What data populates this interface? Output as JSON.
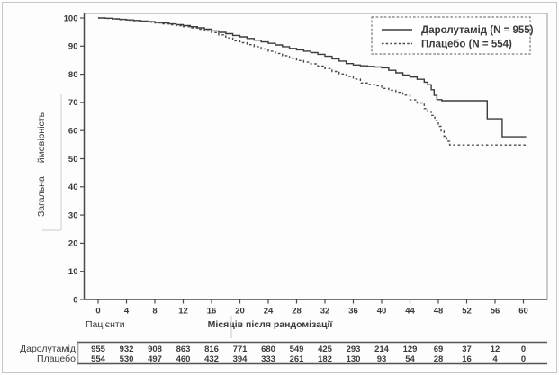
{
  "chart_data": {
    "type": "line",
    "subtype": "kaplan_meier_step",
    "title": "",
    "xlabel": "Місяців після рандомізації",
    "ylabel": "Загальна ймовірність",
    "xlim": [
      0,
      60
    ],
    "ylim": [
      0,
      100
    ],
    "x_ticks": [
      0,
      4,
      8,
      12,
      16,
      20,
      24,
      28,
      32,
      36,
      40,
      44,
      48,
      52,
      56,
      60
    ],
    "y_ticks": [
      0,
      10,
      20,
      30,
      40,
      50,
      60,
      70,
      80,
      90,
      100
    ],
    "grid": false,
    "legend_position": "top-right",
    "series": [
      {
        "name": "Даролутамід (N = 955)",
        "line_style": "solid",
        "points": [
          [
            0,
            100
          ],
          [
            1,
            99.9
          ],
          [
            2,
            99.7
          ],
          [
            3,
            99.5
          ],
          [
            4,
            99.3
          ],
          [
            5,
            99.1
          ],
          [
            6,
            98.9
          ],
          [
            7,
            98.7
          ],
          [
            8,
            98.4
          ],
          [
            9,
            98.2
          ],
          [
            10,
            97.9
          ],
          [
            11,
            97.6
          ],
          [
            12,
            97.3
          ],
          [
            13,
            96.9
          ],
          [
            14,
            96.5
          ],
          [
            15,
            96.0
          ],
          [
            16,
            95.4
          ],
          [
            17,
            94.9
          ],
          [
            18,
            94.4
          ],
          [
            19,
            93.8
          ],
          [
            20,
            93.3
          ],
          [
            21,
            92.7
          ],
          [
            22,
            92.1
          ],
          [
            23,
            91.5
          ],
          [
            24,
            91.0
          ],
          [
            25,
            90.4
          ],
          [
            26,
            89.8
          ],
          [
            27,
            89.2
          ],
          [
            28,
            88.7
          ],
          [
            29,
            88.2
          ],
          [
            30,
            87.7
          ],
          [
            31,
            87.1
          ],
          [
            32,
            86.4
          ],
          [
            33,
            85.5
          ],
          [
            34,
            84.7
          ],
          [
            35,
            83.8
          ],
          [
            36,
            83.3
          ],
          [
            37,
            83.0
          ],
          [
            38,
            82.8
          ],
          [
            39,
            82.6
          ],
          [
            40,
            82.3
          ],
          [
            41,
            81.4
          ],
          [
            42,
            80.5
          ],
          [
            43,
            79.7
          ],
          [
            44,
            79.0
          ],
          [
            45,
            78.2
          ],
          [
            46,
            77.2
          ],
          [
            46.5,
            76.3
          ],
          [
            47,
            74.5
          ],
          [
            47.4,
            72.5
          ],
          [
            47.8,
            71.0
          ],
          [
            48.5,
            70.6
          ],
          [
            54.9,
            64.2
          ],
          [
            57,
            57.8
          ],
          [
            60.4,
            57.8
          ]
        ]
      },
      {
        "name": "Плацебо (N = 554)",
        "line_style": "dashed",
        "points": [
          [
            0,
            100
          ],
          [
            1,
            99.8
          ],
          [
            2,
            99.6
          ],
          [
            3,
            99.4
          ],
          [
            4,
            99.2
          ],
          [
            5,
            99.0
          ],
          [
            6,
            98.7
          ],
          [
            7,
            98.5
          ],
          [
            8,
            98.2
          ],
          [
            9,
            97.9
          ],
          [
            10,
            97.6
          ],
          [
            11,
            97.3
          ],
          [
            12,
            96.9
          ],
          [
            13,
            96.5
          ],
          [
            14,
            96.0
          ],
          [
            15,
            95.4
          ],
          [
            16,
            94.8
          ],
          [
            17,
            94.0
          ],
          [
            18,
            92.9
          ],
          [
            19,
            91.9
          ],
          [
            20,
            91.2
          ],
          [
            21,
            90.5
          ],
          [
            22,
            89.8
          ],
          [
            23,
            89.0
          ],
          [
            24,
            88.2
          ],
          [
            25,
            87.4
          ],
          [
            26,
            86.6
          ],
          [
            27,
            85.7
          ],
          [
            28,
            84.9
          ],
          [
            29,
            84.3
          ],
          [
            30,
            83.7
          ],
          [
            31,
            82.9
          ],
          [
            32,
            82.0
          ],
          [
            33,
            81.0
          ],
          [
            34,
            80.1
          ],
          [
            35,
            79.2
          ],
          [
            36,
            78.3
          ],
          [
            37,
            76.9
          ],
          [
            38,
            76.4
          ],
          [
            39,
            75.9
          ],
          [
            40,
            75.0
          ],
          [
            41,
            74.3
          ],
          [
            42,
            73.6
          ],
          [
            43,
            72.6
          ],
          [
            44,
            70.9
          ],
          [
            45,
            69.8
          ],
          [
            46,
            67.8
          ],
          [
            46.5,
            66.8
          ],
          [
            47,
            65.4
          ],
          [
            47.5,
            63.5
          ],
          [
            48,
            61.5
          ],
          [
            48.4,
            59.8
          ],
          [
            48.8,
            58.0
          ],
          [
            49.2,
            56.2
          ],
          [
            49.6,
            54.9
          ],
          [
            60.6,
            54.9
          ]
        ]
      }
    ],
    "risk_table": {
      "header": "Пацієнти",
      "rows": [
        {
          "label": "Даролутамід",
          "values": [
            955,
            932,
            908,
            863,
            816,
            771,
            680,
            549,
            425,
            293,
            214,
            129,
            69,
            37,
            12,
            0
          ]
        },
        {
          "label": "Плацебо",
          "values": [
            554,
            530,
            497,
            460,
            432,
            394,
            333,
            261,
            182,
            130,
            93,
            54,
            28,
            16,
            4,
            0
          ]
        }
      ]
    }
  },
  "colors": {
    "curve_solid": "#3c3c3c",
    "curve_dashed": "#4a4a4a",
    "axis": "#4a4a4a",
    "plot_frame": "#9a9a9a",
    "table_rule": "#555555",
    "legend_border": "#7a7a7a",
    "artifact": "#dcdcdc",
    "outer_border": "#c6c6c6"
  }
}
